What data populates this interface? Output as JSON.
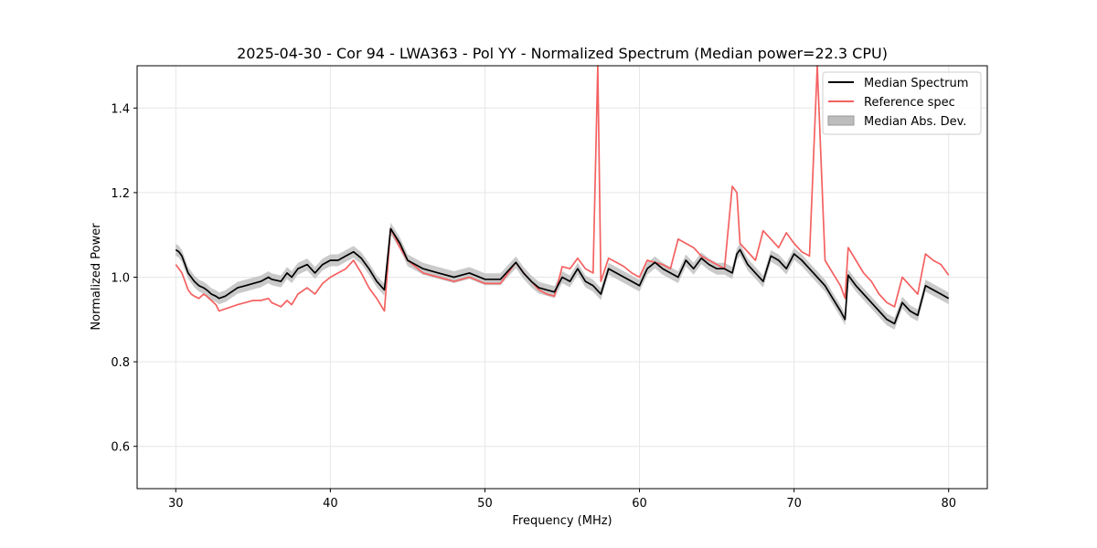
{
  "chart_data": {
    "type": "line",
    "title": "2025-04-30 - Cor 94 - LWA363 - Pol YY - Normalized Spectrum (Median power=22.3 CPU)",
    "xlabel": "Frequency (MHz)",
    "ylabel": "Normalized Power",
    "xlim": [
      27.5,
      82.5
    ],
    "ylim": [
      0.5,
      1.5
    ],
    "xticks": [
      30,
      40,
      50,
      60,
      70,
      80
    ],
    "yticks": [
      0.6,
      0.8,
      1.0,
      1.2,
      1.4
    ],
    "xtick_labels": [
      "30",
      "40",
      "50",
      "60",
      "70",
      "80"
    ],
    "ytick_labels": [
      "0.6",
      "0.8",
      "1.0",
      "1.2",
      "1.4"
    ],
    "grid": true,
    "legend_position": "top-right",
    "legend": {
      "median": "Median Spectrum",
      "reference": "Reference spec",
      "mad": "Median Abs. Dev."
    },
    "colors": {
      "median": "#000000",
      "reference": "#f46161",
      "mad": "#bdbdbd"
    },
    "series": [
      {
        "name": "Median Spectrum",
        "x": [
          30.0,
          30.2,
          30.4,
          30.6,
          30.8,
          31.0,
          31.2,
          31.5,
          31.8,
          32.0,
          32.3,
          32.6,
          32.8,
          33.2,
          33.6,
          34.0,
          34.5,
          35.0,
          35.5,
          36.0,
          36.2,
          36.8,
          37.2,
          37.5,
          37.9,
          38.5,
          39.0,
          39.5,
          40.0,
          40.5,
          41.0,
          41.5,
          42.0,
          42.5,
          43.0,
          43.5,
          43.9,
          44.5,
          45.0,
          46.0,
          47.0,
          48.0,
          49.0,
          50.0,
          51.0,
          52.0,
          52.5,
          53.0,
          53.5,
          54.0,
          54.5,
          55.0,
          55.5,
          56.0,
          56.5,
          57.0,
          57.5,
          58.0,
          58.5,
          59.0,
          59.5,
          60.0,
          60.5,
          61.0,
          61.5,
          62.0,
          62.5,
          63.0,
          63.5,
          64.0,
          64.5,
          65.0,
          65.5,
          66.0,
          66.3,
          66.5,
          67.0,
          67.5,
          68.0,
          68.5,
          69.0,
          69.5,
          70.0,
          70.5,
          71.0,
          71.5,
          72.0,
          72.5,
          73.0,
          73.3,
          73.5,
          74.0,
          74.5,
          75.0,
          75.5,
          76.0,
          76.5,
          77.0,
          77.5,
          78.0,
          78.5,
          79.0,
          79.5,
          80.0
        ],
        "values": [
          1.065,
          1.06,
          1.05,
          1.03,
          1.01,
          1.0,
          0.99,
          0.98,
          0.975,
          0.97,
          0.96,
          0.955,
          0.95,
          0.955,
          0.965,
          0.975,
          0.98,
          0.985,
          0.99,
          1.0,
          0.995,
          0.99,
          1.01,
          1.0,
          1.02,
          1.03,
          1.01,
          1.03,
          1.04,
          1.04,
          1.05,
          1.06,
          1.045,
          1.02,
          0.99,
          0.97,
          1.115,
          1.08,
          1.04,
          1.02,
          1.01,
          1.0,
          1.01,
          0.995,
          0.995,
          1.035,
          1.01,
          0.99,
          0.975,
          0.97,
          0.965,
          1.0,
          0.99,
          1.02,
          0.99,
          0.98,
          0.96,
          1.02,
          1.01,
          1.0,
          0.99,
          0.98,
          1.02,
          1.035,
          1.02,
          1.01,
          1.0,
          1.04,
          1.02,
          1.045,
          1.03,
          1.02,
          1.02,
          1.01,
          1.055,
          1.065,
          1.03,
          1.01,
          0.99,
          1.05,
          1.04,
          1.02,
          1.055,
          1.04,
          1.02,
          1.0,
          0.98,
          0.95,
          0.92,
          0.9,
          1.005,
          0.98,
          0.96,
          0.94,
          0.92,
          0.9,
          0.89,
          0.94,
          0.92,
          0.91,
          0.98,
          0.97,
          0.96,
          0.95
        ]
      },
      {
        "name": "Reference spec",
        "x": [
          30.0,
          30.2,
          30.4,
          30.6,
          30.8,
          31.0,
          31.2,
          31.5,
          31.8,
          32.0,
          32.3,
          32.6,
          32.8,
          33.2,
          33.6,
          34.0,
          34.5,
          35.0,
          35.5,
          36.0,
          36.2,
          36.8,
          37.2,
          37.5,
          37.9,
          38.5,
          39.0,
          39.5,
          40.0,
          40.5,
          41.0,
          41.5,
          42.0,
          42.5,
          43.0,
          43.5,
          43.9,
          44.5,
          45.0,
          46.0,
          47.0,
          48.0,
          49.0,
          50.0,
          51.0,
          52.0,
          52.5,
          53.0,
          53.5,
          54.0,
          54.5,
          55.0,
          55.5,
          56.0,
          56.5,
          57.0,
          57.3,
          57.5,
          58.0,
          58.5,
          59.0,
          59.5,
          60.0,
          60.5,
          61.0,
          61.5,
          62.0,
          62.5,
          63.0,
          63.5,
          64.0,
          64.5,
          65.0,
          65.5,
          66.0,
          66.3,
          66.5,
          67.0,
          67.5,
          68.0,
          68.5,
          69.0,
          69.5,
          70.0,
          70.5,
          71.0,
          71.5,
          72.0,
          72.5,
          73.0,
          73.3,
          73.5,
          74.0,
          74.5,
          75.0,
          75.5,
          76.0,
          76.5,
          77.0,
          77.5,
          78.0,
          78.5,
          79.0,
          79.5,
          80.0
        ],
        "values": [
          1.03,
          1.02,
          1.01,
          0.99,
          0.97,
          0.96,
          0.955,
          0.95,
          0.96,
          0.955,
          0.945,
          0.935,
          0.92,
          0.925,
          0.93,
          0.935,
          0.94,
          0.945,
          0.945,
          0.95,
          0.94,
          0.93,
          0.945,
          0.935,
          0.96,
          0.975,
          0.96,
          0.985,
          1.0,
          1.01,
          1.02,
          1.04,
          1.01,
          0.975,
          0.95,
          0.92,
          1.115,
          1.07,
          1.04,
          1.01,
          1.0,
          0.99,
          1.0,
          0.985,
          0.985,
          1.035,
          1.01,
          0.99,
          0.97,
          0.96,
          0.955,
          1.025,
          1.02,
          1.045,
          1.02,
          1.01,
          1.5,
          0.99,
          1.045,
          1.035,
          1.025,
          1.01,
          1.0,
          1.04,
          1.035,
          1.03,
          1.02,
          1.09,
          1.08,
          1.07,
          1.05,
          1.04,
          1.03,
          1.02,
          1.215,
          1.2,
          1.08,
          1.06,
          1.04,
          1.11,
          1.09,
          1.07,
          1.105,
          1.08,
          1.06,
          1.05,
          1.5,
          1.04,
          1.01,
          0.98,
          0.95,
          1.07,
          1.04,
          1.01,
          0.99,
          0.96,
          0.94,
          0.93,
          1.0,
          0.98,
          0.96,
          1.055,
          1.04,
          1.03,
          1.005
        ]
      },
      {
        "name": "Median Abs. Dev.",
        "type": "band",
        "width": 0.014
      }
    ]
  }
}
